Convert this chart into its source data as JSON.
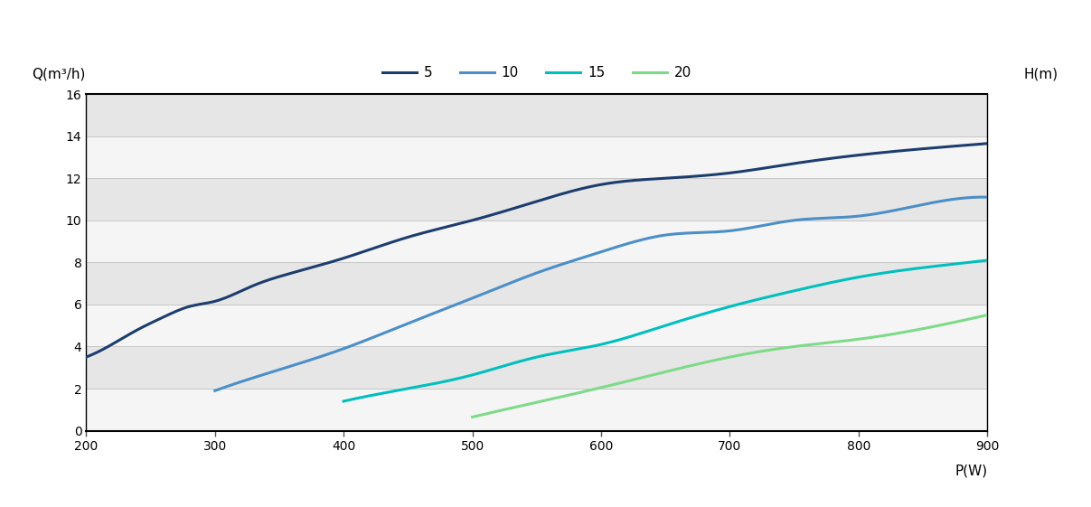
{
  "xlabel": "P(W)",
  "ylabel_left": "Q(m³/h)",
  "ylabel_right": "H(m)",
  "xlim": [
    200,
    900
  ],
  "ylim": [
    0,
    16
  ],
  "xticks": [
    200,
    300,
    400,
    500,
    600,
    700,
    800,
    900
  ],
  "yticks": [
    0,
    2,
    4,
    6,
    8,
    10,
    12,
    14,
    16
  ],
  "fig_bg": "#f0f0f0",
  "plot_bg_light": "#f0f0f0",
  "plot_bg_dark": "#e0e0e0",
  "grid_color": "#c8c8c8",
  "series": [
    {
      "label": "5",
      "color": "#1c3d6e",
      "linewidth": 2.2,
      "x": [
        200,
        220,
        240,
        260,
        280,
        300,
        330,
        360,
        400,
        450,
        500,
        550,
        600,
        650,
        700,
        750,
        800,
        850,
        900
      ],
      "y": [
        3.5,
        4.1,
        4.8,
        5.4,
        5.9,
        6.15,
        6.9,
        7.5,
        8.2,
        9.2,
        10.0,
        10.9,
        11.7,
        12.0,
        12.25,
        12.7,
        13.1,
        13.4,
        13.65
      ]
    },
    {
      "label": "10",
      "color": "#4b8ec8",
      "linewidth": 2.2,
      "x": [
        300,
        350,
        400,
        450,
        500,
        550,
        600,
        650,
        700,
        750,
        800,
        850,
        900
      ],
      "y": [
        1.9,
        2.9,
        3.9,
        5.1,
        6.3,
        7.5,
        8.5,
        9.3,
        9.5,
        10.0,
        10.2,
        10.75,
        11.1
      ]
    },
    {
      "label": "15",
      "color": "#00bfbf",
      "linewidth": 2.2,
      "x": [
        400,
        450,
        500,
        550,
        600,
        650,
        700,
        750,
        800,
        850,
        900
      ],
      "y": [
        1.4,
        2.0,
        2.65,
        3.5,
        4.1,
        5.0,
        5.9,
        6.65,
        7.3,
        7.75,
        8.1
      ]
    },
    {
      "label": "20",
      "color": "#7ddb88",
      "linewidth": 2.2,
      "x": [
        500,
        550,
        600,
        650,
        700,
        750,
        800,
        850,
        900
      ],
      "y": [
        0.65,
        1.35,
        2.05,
        2.8,
        3.5,
        4.0,
        4.35,
        4.85,
        5.5
      ]
    }
  ]
}
